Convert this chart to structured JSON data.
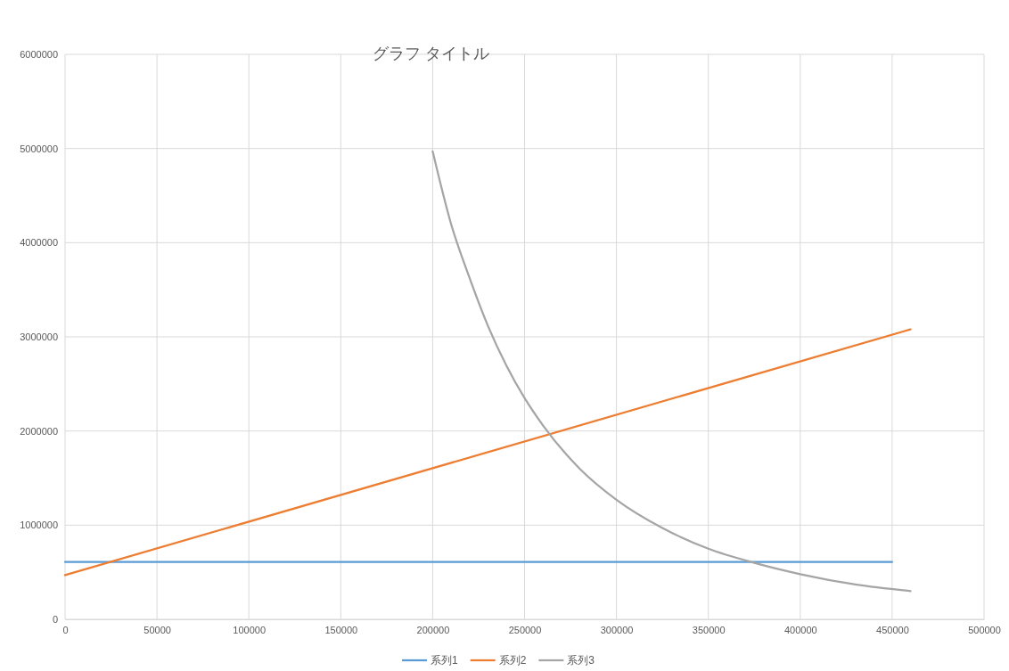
{
  "chart_data": {
    "type": "line",
    "title": "グラフ タイトル",
    "xlim": [
      0,
      500000
    ],
    "xticks": [
      0,
      50000,
      100000,
      150000,
      200000,
      250000,
      300000,
      350000,
      400000,
      450000,
      500000
    ],
    "ylim": [
      0,
      6000000
    ],
    "yticks": [
      0,
      1000000,
      2000000,
      3000000,
      4000000,
      5000000,
      6000000
    ],
    "grid": true,
    "legend": "bottom",
    "marker": "none",
    "line_style": "solid",
    "series": [
      {
        "name": "系列1",
        "color": "#5b9bd5",
        "x": [
          0,
          450000
        ],
        "values": [
          610000,
          610000
        ]
      },
      {
        "name": "系列2",
        "color": "#ed7d31",
        "x": [
          0,
          460000
        ],
        "values": [
          470000,
          3080000
        ]
      },
      {
        "name": "系列3",
        "color": "#a5a5a5",
        "x": [
          200000,
          210000,
          220000,
          230000,
          240000,
          250000,
          260000,
          280000,
          300000,
          325000,
          350000,
          375000,
          400000,
          430000,
          460000
        ],
        "values": [
          4970000,
          4200000,
          3630000,
          3120000,
          2700000,
          2350000,
          2060000,
          1600000,
          1270000,
          970000,
          750000,
          600000,
          480000,
          370000,
          300000
        ]
      }
    ]
  }
}
